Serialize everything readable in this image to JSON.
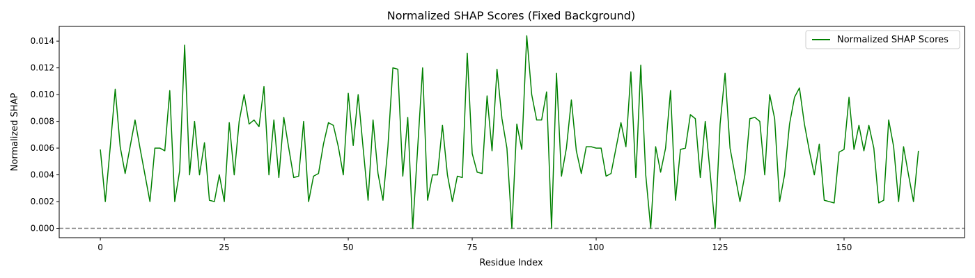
{
  "chart_data": {
    "type": "line",
    "title": "Normalized SHAP Scores (Fixed Background)",
    "xlabel": "Residue Index",
    "ylabel": "Normalized SHAP",
    "xlim": [
      -8.3,
      174.3
    ],
    "ylim": [
      -0.0007,
      0.0151
    ],
    "xticks": [
      0,
      25,
      50,
      75,
      100,
      125,
      150
    ],
    "xtick_labels": [
      "0",
      "25",
      "50",
      "75",
      "100",
      "125",
      "150"
    ],
    "yticks": [
      0.0,
      0.002,
      0.004,
      0.006,
      0.008,
      0.01,
      0.012,
      0.014
    ],
    "ytick_labels": [
      "0.000",
      "0.002",
      "0.004",
      "0.006",
      "0.008",
      "0.010",
      "0.012",
      "0.014"
    ],
    "grid": false,
    "legend_position": "top-right",
    "reference_line": {
      "y": 0.0,
      "style": "dashed",
      "color": "#808080"
    },
    "series": [
      {
        "name": "Normalized SHAP Scores",
        "color": "#008000",
        "x": [
          0,
          1,
          2,
          3,
          4,
          5,
          6,
          7,
          8,
          9,
          10,
          11,
          12,
          13,
          14,
          15,
          16,
          17,
          18,
          19,
          20,
          21,
          22,
          23,
          24,
          25,
          26,
          27,
          28,
          29,
          30,
          31,
          32,
          33,
          34,
          35,
          36,
          37,
          38,
          39,
          40,
          41,
          42,
          43,
          44,
          45,
          46,
          47,
          48,
          49,
          50,
          51,
          52,
          53,
          54,
          55,
          56,
          57,
          58,
          59,
          60,
          61,
          62,
          63,
          64,
          65,
          66,
          67,
          68,
          69,
          70,
          71,
          72,
          73,
          74,
          75,
          76,
          77,
          78,
          79,
          80,
          81,
          82,
          83,
          84,
          85,
          86,
          87,
          88,
          89,
          90,
          91,
          92,
          93,
          94,
          95,
          96,
          97,
          98,
          99,
          100,
          101,
          102,
          103,
          104,
          105,
          106,
          107,
          108,
          109,
          110,
          111,
          112,
          113,
          114,
          115,
          116,
          117,
          118,
          119,
          120,
          121,
          122,
          123,
          124,
          125,
          126,
          127,
          128,
          129,
          130,
          131,
          132,
          133,
          134,
          135,
          136,
          137,
          138,
          139,
          140,
          141,
          142,
          143,
          144,
          145,
          146,
          147,
          148,
          149,
          150,
          151,
          152,
          153,
          154,
          155,
          156,
          157,
          158,
          159,
          160,
          161,
          162,
          163,
          164,
          165
        ],
        "values": [
          0.0059,
          0.002,
          0.0061,
          0.0104,
          0.0061,
          0.0041,
          0.0061,
          0.0081,
          0.006,
          0.004,
          0.002,
          0.006,
          0.006,
          0.0058,
          0.0103,
          0.002,
          0.0043,
          0.0137,
          0.004,
          0.008,
          0.004,
          0.0064,
          0.0021,
          0.002,
          0.004,
          0.002,
          0.0079,
          0.004,
          0.008,
          0.01,
          0.0078,
          0.0081,
          0.0076,
          0.0106,
          0.004,
          0.0081,
          0.0038,
          0.0083,
          0.006,
          0.0038,
          0.0039,
          0.008,
          0.002,
          0.0039,
          0.0041,
          0.0063,
          0.0079,
          0.0077,
          0.0061,
          0.004,
          0.0101,
          0.0062,
          0.01,
          0.006,
          0.0021,
          0.0081,
          0.0041,
          0.0021,
          0.0061,
          0.012,
          0.0119,
          0.0039,
          0.0083,
          0.0,
          0.006,
          0.012,
          0.0021,
          0.004,
          0.004,
          0.0077,
          0.004,
          0.002,
          0.0039,
          0.0038,
          0.0131,
          0.0056,
          0.0042,
          0.0041,
          0.0099,
          0.0058,
          0.0119,
          0.0082,
          0.006,
          0.0,
          0.0078,
          0.0059,
          0.0144,
          0.01,
          0.0081,
          0.0081,
          0.0102,
          0.0,
          0.0116,
          0.0039,
          0.006,
          0.0096,
          0.0058,
          0.0041,
          0.0061,
          0.0061,
          0.006,
          0.006,
          0.0039,
          0.0041,
          0.006,
          0.0079,
          0.0061,
          0.0117,
          0.0038,
          0.0122,
          0.004,
          0.0,
          0.0061,
          0.0042,
          0.006,
          0.0103,
          0.0021,
          0.0059,
          0.006,
          0.0085,
          0.0082,
          0.0038,
          0.008,
          0.0041,
          0.0,
          0.0078,
          0.0116,
          0.006,
          0.004,
          0.002,
          0.004,
          0.0082,
          0.0083,
          0.008,
          0.004,
          0.01,
          0.0082,
          0.002,
          0.004,
          0.0078,
          0.0098,
          0.0105,
          0.0078,
          0.0058,
          0.004,
          0.0063,
          0.0021,
          0.002,
          0.0019,
          0.0057,
          0.0059,
          0.0098,
          0.0059,
          0.0077,
          0.0058,
          0.0077,
          0.006,
          0.0019,
          0.0021,
          0.0081,
          0.0061,
          0.002,
          0.0061,
          0.004,
          0.002,
          0.0058
        ]
      }
    ]
  }
}
